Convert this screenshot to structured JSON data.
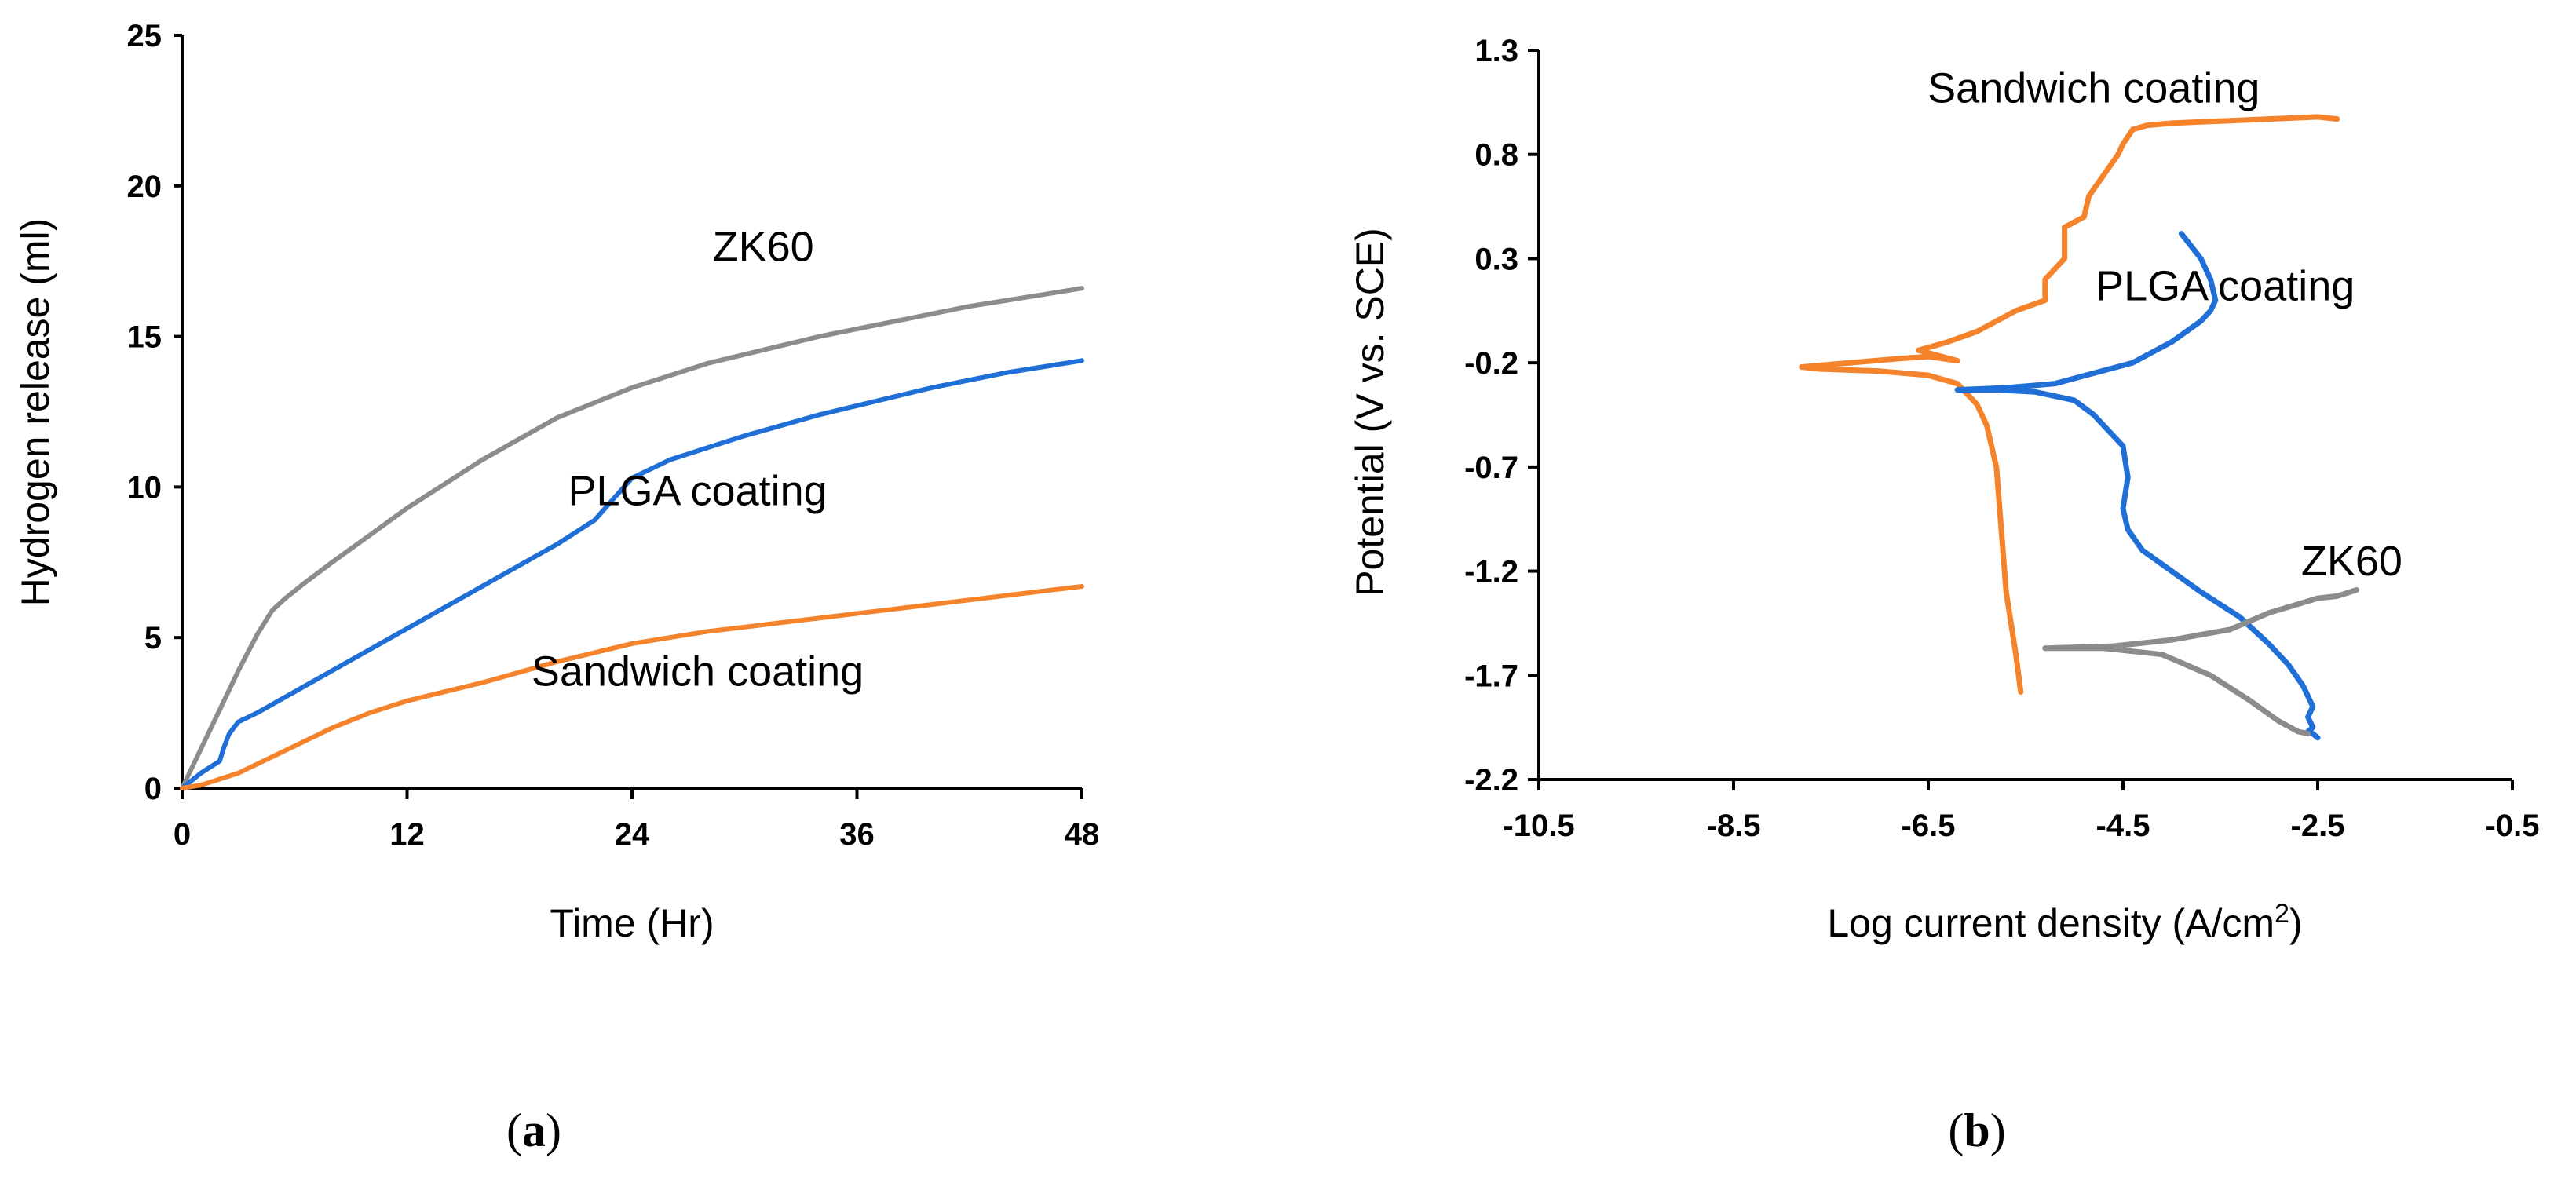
{
  "chart_data": [
    {
      "id": "a",
      "type": "line",
      "panel_label": "(a)",
      "panel_label_letter": "a",
      "xlabel": "Time (Hr)",
      "ylabel": "Hydrogen release (ml)",
      "xlim": [
        0,
        48
      ],
      "ylim": [
        0,
        25
      ],
      "xticks": [
        0,
        12,
        24,
        36,
        48
      ],
      "yticks": [
        0,
        5,
        10,
        15,
        20,
        25
      ],
      "grid": false,
      "series": [
        {
          "name": "ZK60",
          "color": "#8c8c8c",
          "x": [
            0,
            1,
            2,
            3,
            4,
            4.8,
            5.5,
            6.5,
            8,
            10,
            12,
            14,
            16,
            18,
            20,
            22,
            24,
            26,
            28,
            30,
            32,
            34,
            36,
            38,
            40,
            42,
            44,
            46,
            48
          ],
          "y": [
            0,
            1.3,
            2.6,
            3.9,
            5.1,
            5.9,
            6.3,
            6.8,
            7.5,
            8.4,
            9.3,
            10.1,
            10.9,
            11.6,
            12.3,
            12.8,
            13.3,
            13.7,
            14.1,
            14.4,
            14.7,
            15.0,
            15.25,
            15.5,
            15.75,
            16.0,
            16.2,
            16.4,
            16.6
          ]
        },
        {
          "name": "PLGA coating",
          "color": "#1f6fd6",
          "x": [
            0,
            1,
            2,
            2.2,
            2.5,
            3,
            4,
            6,
            8,
            10,
            12,
            14,
            16,
            18,
            20,
            22,
            23,
            24,
            26,
            28,
            30,
            32,
            34,
            36,
            38,
            40,
            42,
            44,
            46,
            48
          ],
          "y": [
            0,
            0.5,
            0.9,
            1.3,
            1.8,
            2.2,
            2.5,
            3.2,
            3.9,
            4.6,
            5.3,
            6.0,
            6.7,
            7.4,
            8.1,
            8.9,
            9.6,
            10.3,
            10.9,
            11.3,
            11.7,
            12.05,
            12.4,
            12.7,
            13.0,
            13.3,
            13.55,
            13.8,
            14.0,
            14.2
          ]
        },
        {
          "name": "Sandwich coating",
          "color": "#f5832b",
          "x": [
            0,
            1,
            2,
            3,
            4,
            6,
            8,
            10,
            12,
            14,
            16,
            18,
            20,
            22,
            24,
            26,
            28,
            30,
            32,
            34,
            36,
            38,
            40,
            42,
            44,
            46,
            48
          ],
          "y": [
            0,
            0.1,
            0.3,
            0.5,
            0.8,
            1.4,
            2.0,
            2.5,
            2.9,
            3.2,
            3.5,
            3.85,
            4.2,
            4.5,
            4.8,
            5.0,
            5.2,
            5.35,
            5.5,
            5.65,
            5.8,
            5.95,
            6.1,
            6.25,
            6.4,
            6.55,
            6.7
          ]
        }
      ],
      "annotations": [
        {
          "text": "ZK60",
          "x": 31,
          "y": 17.5
        },
        {
          "text": "PLGA coating",
          "x": 27.5,
          "y": 9.4
        },
        {
          "text": "Sandwich coating",
          "x": 27.5,
          "y": 3.4
        }
      ]
    },
    {
      "id": "b",
      "type": "line",
      "panel_label": "(b)",
      "panel_label_letter": "b",
      "xlabel": "Log current density (A/cm",
      "xlabel_superscript": "2",
      "xlabel_suffix": ")",
      "ylabel": "Potential (V vs. SCE)",
      "xlim": [
        -10.5,
        -0.5
      ],
      "ylim": [
        -2.2,
        1.3
      ],
      "xticks": [
        "-10.5",
        "-8.5",
        "-6.5",
        "-4.5",
        "-2.5",
        "-0.5"
      ],
      "yticks": [
        "1.3",
        "0.8",
        "0.3",
        "-0.2",
        "-0.7",
        "-1.2",
        "-1.7",
        "-2.2"
      ],
      "grid": false,
      "series": [
        {
          "name": "Sandwich coating",
          "color": "#f5832b",
          "x": [
            -5.55,
            -5.6,
            -5.7,
            -5.75,
            -5.8,
            -5.9,
            -6.0,
            -6.2,
            -6.5,
            -7.0,
            -7.6,
            -7.8,
            -7.3,
            -6.8,
            -6.5,
            -6.2,
            -6.6,
            -6.3,
            -6.0,
            -5.8,
            -5.6,
            -5.3,
            -5.3,
            -5.1,
            -5.1,
            -4.9,
            -4.85,
            -4.7,
            -4.55,
            -4.5,
            -4.4,
            -4.25,
            -4.0,
            -3.5,
            -3.0,
            -2.5,
            -2.3
          ],
          "y": [
            -1.78,
            -1.6,
            -1.3,
            -1.0,
            -0.7,
            -0.5,
            -0.4,
            -0.3,
            -0.26,
            -0.24,
            -0.23,
            -0.22,
            -0.2,
            -0.18,
            -0.17,
            -0.19,
            -0.14,
            -0.1,
            -0.05,
            0.0,
            0.05,
            0.1,
            0.2,
            0.3,
            0.45,
            0.5,
            0.6,
            0.7,
            0.8,
            0.85,
            0.92,
            0.94,
            0.95,
            0.96,
            0.97,
            0.98,
            0.97
          ]
        },
        {
          "name": "PLGA coating",
          "color": "#1f6fd6",
          "x": [
            -6.2,
            -5.8,
            -5.4,
            -5.0,
            -4.8,
            -4.6,
            -4.5,
            -4.45,
            -4.5,
            -4.45,
            -4.3,
            -4.0,
            -3.7,
            -3.3,
            -3.0,
            -2.8,
            -2.65,
            -2.55,
            -2.6,
            -2.55,
            -2.6,
            -2.55,
            -2.5,
            -6.2,
            -5.7,
            -5.2,
            -4.8,
            -4.4,
            -4.0,
            -3.7,
            -3.6,
            -3.55,
            -3.6,
            -3.7,
            -3.9
          ],
          "y": [
            -0.33,
            -0.33,
            -0.34,
            -0.38,
            -0.45,
            -0.55,
            -0.6,
            -0.75,
            -0.9,
            -1.0,
            -1.1,
            -1.2,
            -1.3,
            -1.42,
            -1.55,
            -1.65,
            -1.75,
            -1.85,
            -1.9,
            -1.95,
            -1.97,
            -1.98,
            -2.0,
            -0.33,
            -0.32,
            -0.3,
            -0.25,
            -0.2,
            -0.1,
            0.0,
            0.05,
            0.1,
            0.2,
            0.3,
            0.42
          ]
        },
        {
          "name": "ZK60",
          "color": "#8c8c8c",
          "x": [
            -5.3,
            -4.7,
            -4.1,
            -3.6,
            -3.2,
            -2.9,
            -2.7,
            -2.6,
            -5.3,
            -4.6,
            -4.0,
            -3.4,
            -3.0,
            -2.5,
            -2.3,
            -2.1
          ],
          "y": [
            -1.57,
            -1.57,
            -1.6,
            -1.7,
            -1.82,
            -1.92,
            -1.97,
            -1.98,
            -1.57,
            -1.56,
            -1.53,
            -1.48,
            -1.4,
            -1.33,
            -1.32,
            -1.29
          ]
        }
      ],
      "annotations": [
        {
          "text": "Sandwich coating",
          "x": -4.8,
          "y": 1.05
        },
        {
          "text": "PLGA coating",
          "x": -3.45,
          "y": 0.1
        },
        {
          "text": "ZK60",
          "x": -2.15,
          "y": -1.22
        }
      ]
    }
  ]
}
